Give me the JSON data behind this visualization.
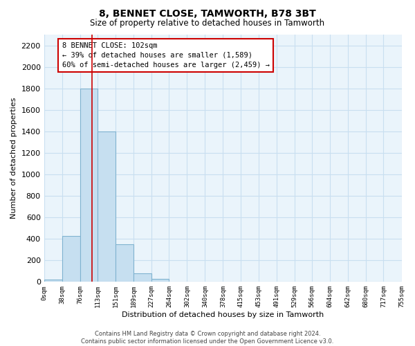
{
  "title": "8, BENNET CLOSE, TAMWORTH, B78 3BT",
  "subtitle": "Size of property relative to detached houses in Tamworth",
  "xlabel": "Distribution of detached houses by size in Tamworth",
  "ylabel": "Number of detached properties",
  "bar_values": [
    20,
    430,
    1800,
    1400,
    350,
    80,
    25,
    5,
    0,
    0,
    0,
    0,
    0,
    0,
    0,
    0,
    0,
    0,
    0,
    0
  ],
  "bin_edges": [
    0,
    38,
    76,
    113,
    151,
    189,
    227,
    264,
    302,
    340,
    378,
    415,
    453,
    491,
    529,
    566,
    604,
    642,
    680,
    717,
    755
  ],
  "tick_labels": [
    "0sqm",
    "38sqm",
    "76sqm",
    "113sqm",
    "151sqm",
    "189sqm",
    "227sqm",
    "264sqm",
    "302sqm",
    "340sqm",
    "378sqm",
    "415sqm",
    "453sqm",
    "491sqm",
    "529sqm",
    "566sqm",
    "604sqm",
    "642sqm",
    "680sqm",
    "717sqm",
    "755sqm"
  ],
  "bar_color": "#c6dff0",
  "bar_edge_color": "#7fb3d0",
  "vline_x": 102,
  "vline_color": "#cc0000",
  "ylim": [
    0,
    2300
  ],
  "yticks": [
    0,
    200,
    400,
    600,
    800,
    1000,
    1200,
    1400,
    1600,
    1800,
    2000,
    2200
  ],
  "annotation_title": "8 BENNET CLOSE: 102sqm",
  "annotation_line1": "← 39% of detached houses are smaller (1,589)",
  "annotation_line2": "60% of semi-detached houses are larger (2,459) →",
  "footer_line1": "Contains HM Land Registry data © Crown copyright and database right 2024.",
  "footer_line2": "Contains public sector information licensed under the Open Government Licence v3.0.",
  "grid_color": "#c8dff0",
  "bg_color": "#eaf4fb",
  "fig_bg": "#ffffff"
}
